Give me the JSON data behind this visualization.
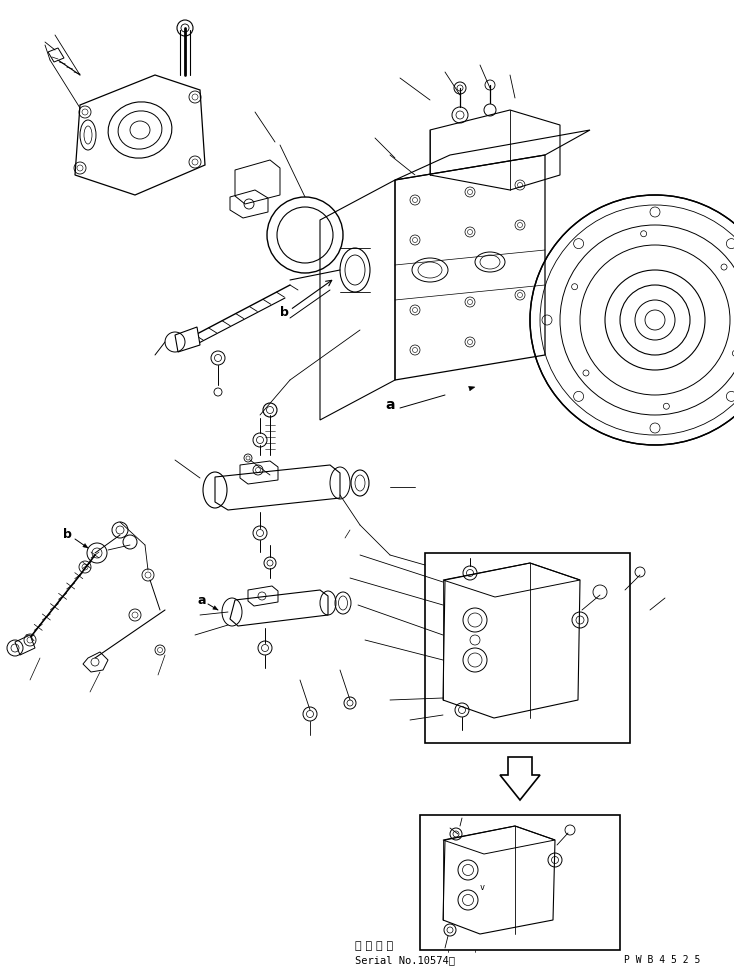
{
  "background_color": "#ffffff",
  "line_color": "#000000",
  "fig_width": 7.34,
  "fig_height": 9.74,
  "dpi": 100,
  "bottom_text_line1": "適 用 号 機",
  "bottom_text_line2": "Serial No.10574～",
  "bottom_right_text": "P W B 4 5 2 5",
  "label_a": "a",
  "label_b": "b"
}
